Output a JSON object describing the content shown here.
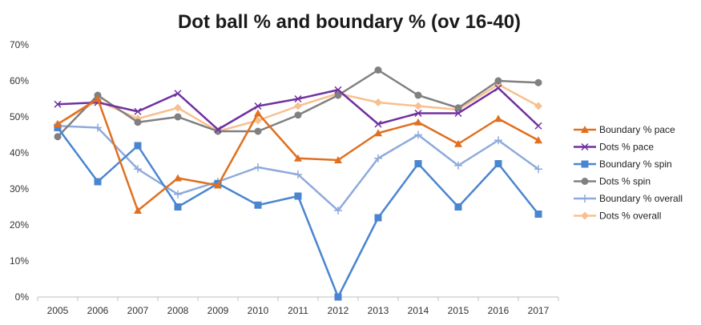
{
  "chart_data": {
    "type": "line",
    "title": "Dot ball % and boundary % (ov 16-40)",
    "xlabel": "",
    "ylabel": "",
    "categories": [
      "2005",
      "2006",
      "2007",
      "2008",
      "2009",
      "2010",
      "2011",
      "2012",
      "2013",
      "2014",
      "2015",
      "2016",
      "2017"
    ],
    "ylim": [
      0,
      70
    ],
    "yticks": [
      0,
      10,
      20,
      30,
      40,
      50,
      60,
      70
    ],
    "ytick_labels": [
      "0%",
      "10%",
      "20%",
      "30%",
      "40%",
      "50%",
      "60%",
      "70%"
    ],
    "grid": false,
    "legend_position": "right",
    "series": [
      {
        "name": "Boundary % pace",
        "color": "#e07020",
        "marker": "triangle",
        "values": [
          48,
          55,
          24,
          33,
          31,
          51,
          38.5,
          38,
          45.5,
          48.5,
          42.5,
          49.5,
          43.5
        ]
      },
      {
        "name": "Dots % pace",
        "color": "#7030a0",
        "marker": "x",
        "values": [
          53.5,
          54,
          51.5,
          56.5,
          46.5,
          53,
          55,
          57.5,
          48,
          51,
          51,
          58,
          47.5
        ]
      },
      {
        "name": "Boundary % spin",
        "color": "#4a86d0",
        "marker": "square",
        "values": [
          47,
          32,
          42,
          25,
          31.5,
          25.5,
          28,
          0,
          22,
          37,
          25,
          37,
          23
        ]
      },
      {
        "name": "Dots % spin",
        "color": "#808080",
        "marker": "circle",
        "values": [
          44.5,
          56,
          48.5,
          50,
          46,
          46,
          50.5,
          56,
          63,
          56,
          52.5,
          60,
          59.5
        ]
      },
      {
        "name": "Boundary % overall",
        "color": "#8faadc",
        "marker": "plus",
        "values": [
          47.5,
          47,
          35.5,
          28.5,
          32,
          36,
          34,
          24,
          38.5,
          45,
          36.5,
          43.5,
          35.5
        ]
      },
      {
        "name": "Dots % overall",
        "color": "#f8c090",
        "marker": "diamond",
        "values": [
          48,
          54.5,
          49.5,
          52.5,
          46,
          49,
          53,
          56.5,
          54,
          53,
          52,
          59,
          53
        ]
      }
    ]
  }
}
